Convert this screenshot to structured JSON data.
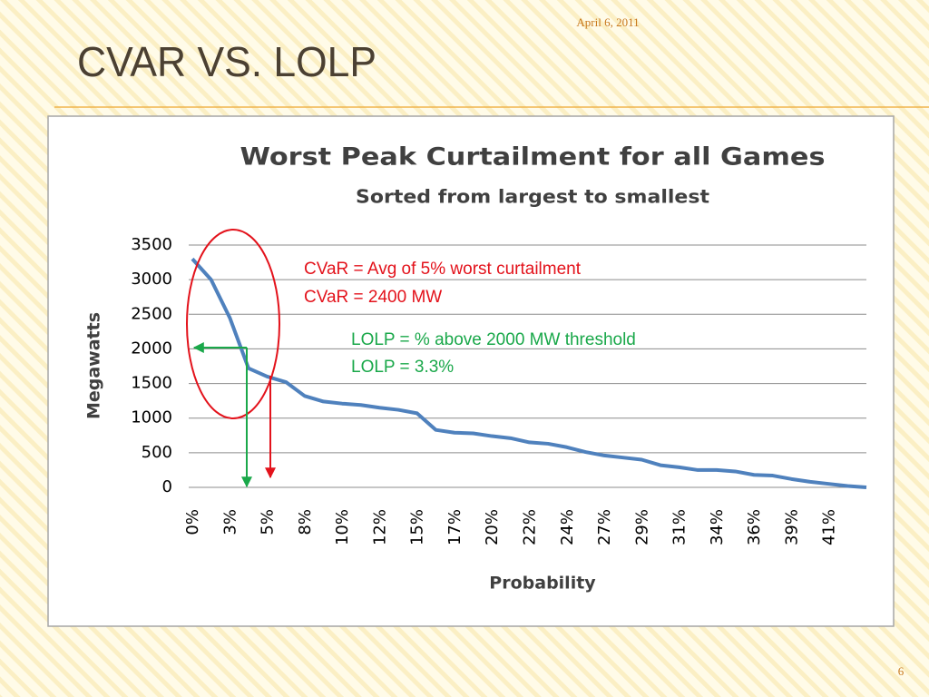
{
  "slide_title": "CVAR VS. LOLP",
  "date": "April 6, 2011",
  "page_number": "6",
  "chart_data": {
    "type": "line",
    "title": "Worst Peak Curtailment for all Games",
    "subtitle": "Sorted from largest to smallest",
    "y_label": "Megawatts",
    "x_label": "Probability",
    "categories": [
      "0%",
      null,
      "3%",
      null,
      "5%",
      null,
      "8%",
      null,
      "10%",
      null,
      "12%",
      null,
      "15%",
      null,
      "17%",
      null,
      "20%",
      null,
      "22%",
      null,
      "24%",
      null,
      "27%",
      null,
      "29%",
      null,
      "31%",
      null,
      "34%",
      null,
      "36%",
      null,
      "39%",
      null,
      "41%",
      null,
      null
    ],
    "series": [
      {
        "name": "Worst Peak Curtailment",
        "color": "#4f81bd",
        "values": [
          3300,
          3000,
          2450,
          1720,
          1600,
          1520,
          1320,
          1240,
          1210,
          1190,
          1150,
          1120,
          1070,
          830,
          790,
          780,
          740,
          710,
          650,
          630,
          580,
          510,
          460,
          430,
          400,
          320,
          290,
          250,
          250,
          230,
          180,
          170,
          120,
          80,
          50,
          20,
          0
        ]
      }
    ],
    "ylim": [
      0,
      3500
    ],
    "yticks": [
      0,
      500,
      1000,
      1500,
      2000,
      2500,
      3000,
      3500
    ],
    "grid": true,
    "annotations": [
      {
        "text": "CVaR = Avg of 5% worst curtailment",
        "color": "#e3121b"
      },
      {
        "text": "CVaR = 2400 MW",
        "color": "#e3121b"
      },
      {
        "text": "LOLP = % above 2000 MW threshold",
        "color": "#1aa84a"
      },
      {
        "text": "LOLP = 3.3%",
        "color": "#1aa84a"
      }
    ]
  }
}
